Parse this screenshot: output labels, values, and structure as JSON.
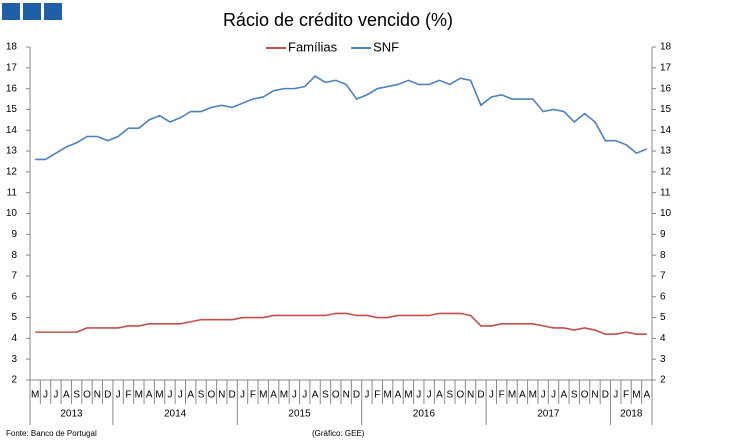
{
  "chart_data": {
    "type": "line",
    "title": "Rácio de crédito vencido (%)",
    "categories": [
      "M",
      "J",
      "J",
      "A",
      "S",
      "O",
      "N",
      "D",
      "J",
      "F",
      "M",
      "A",
      "M",
      "J",
      "J",
      "A",
      "S",
      "O",
      "N",
      "D",
      "J",
      "F",
      "M",
      "A",
      "M",
      "J",
      "J",
      "A",
      "S",
      "O",
      "N",
      "D",
      "J",
      "F",
      "M",
      "A",
      "M",
      "J",
      "J",
      "A",
      "S",
      "O",
      "N",
      "D",
      "J",
      "F",
      "M",
      "A",
      "M",
      "J",
      "J",
      "A",
      "S",
      "O",
      "N",
      "D",
      "J",
      "F",
      "M",
      "A"
    ],
    "years": [
      "2013",
      "2014",
      "2015",
      "2016",
      "2017",
      "2018"
    ],
    "series": [
      {
        "name": "Famílias",
        "color": "#c0504d",
        "values": [
          4.3,
          4.3,
          4.3,
          4.3,
          4.3,
          4.5,
          4.5,
          4.5,
          4.5,
          4.6,
          4.6,
          4.7,
          4.7,
          4.7,
          4.7,
          4.8,
          4.9,
          4.9,
          4.9,
          4.9,
          5.0,
          5.0,
          5.0,
          5.1,
          5.1,
          5.1,
          5.1,
          5.1,
          5.1,
          5.2,
          5.2,
          5.1,
          5.1,
          5.0,
          5.0,
          5.1,
          5.1,
          5.1,
          5.1,
          5.2,
          5.2,
          5.2,
          5.1,
          4.6,
          4.6,
          4.7,
          4.7,
          4.7,
          4.7,
          4.6,
          4.5,
          4.5,
          4.4,
          4.5,
          4.4,
          4.2,
          4.2,
          4.3,
          4.2,
          4.2
        ]
      },
      {
        "name": "SNF",
        "color": "#4f81bd",
        "values": [
          12.6,
          12.6,
          12.9,
          13.2,
          13.4,
          13.7,
          13.7,
          13.5,
          13.7,
          14.1,
          14.1,
          14.5,
          14.7,
          14.4,
          14.6,
          14.9,
          14.9,
          15.1,
          15.2,
          15.1,
          15.3,
          15.5,
          15.6,
          15.9,
          16.0,
          16.0,
          16.1,
          16.6,
          16.3,
          16.4,
          16.2,
          15.5,
          15.7,
          16.0,
          16.1,
          16.2,
          16.4,
          16.2,
          16.2,
          16.4,
          16.2,
          16.5,
          16.4,
          15.2,
          15.6,
          15.7,
          15.5,
          15.5,
          15.5,
          14.9,
          15.0,
          14.9,
          14.4,
          14.8,
          14.4,
          13.5,
          13.5,
          13.3,
          12.9,
          13.1
        ]
      }
    ],
    "ylim": [
      2,
      18
    ],
    "yticks": [
      2,
      3,
      4,
      5,
      6,
      7,
      8,
      9,
      10,
      11,
      12,
      13,
      14,
      15,
      16,
      17,
      18
    ],
    "y2lim": [
      2,
      18
    ],
    "y2ticks": [
      2,
      3,
      4,
      5,
      6,
      7,
      8,
      9,
      10,
      11,
      12,
      13,
      14,
      15,
      16,
      17,
      18
    ],
    "legend": "top",
    "source": "Fonte: Banco de Portugal",
    "note": "(Gráfico: GEE)"
  }
}
